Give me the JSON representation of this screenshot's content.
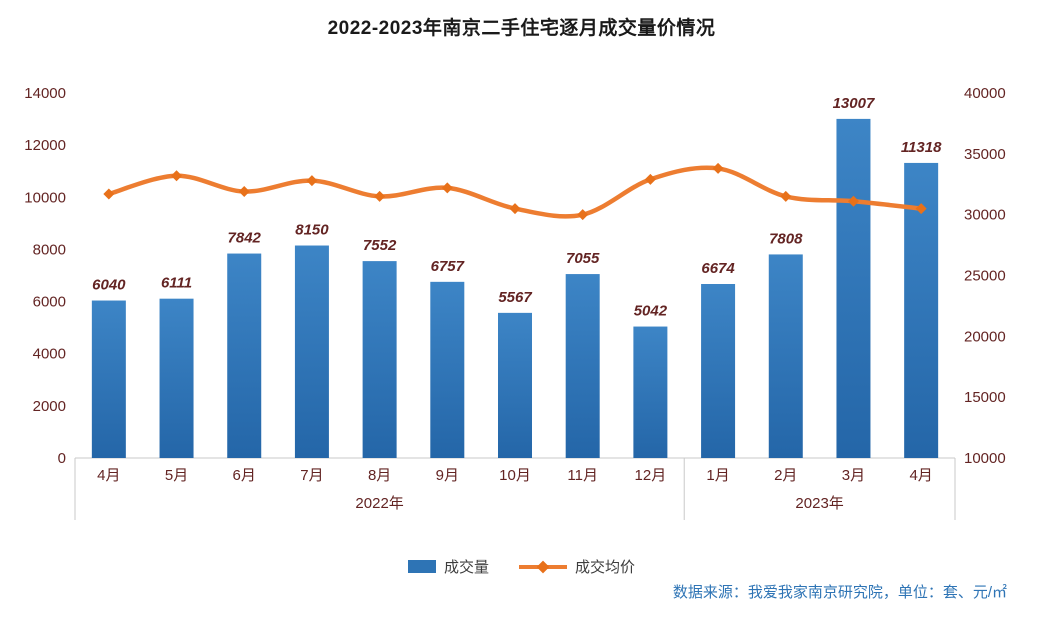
{
  "title": "2022-2023年南京二手住宅逐月成交量价情况",
  "footer": "数据来源：我爱我家南京研究院，单位：套、元/㎡",
  "legend": {
    "items": [
      {
        "label": "成交量",
        "marker": "bar-swatch-icon"
      },
      {
        "label": "成交均价",
        "marker": "line-swatch-icon"
      }
    ]
  },
  "colors": {
    "bar_top": "#3d85c6",
    "bar_bottom": "#2466a8",
    "bar": "#2E74B5",
    "line": "#ED7D31",
    "marker": "#E8711A",
    "axis_text": "#632423",
    "axis_line": "#c9c9c9",
    "footer_text": "#2E74B5",
    "title_text": "#1a1a1a"
  },
  "chart_data": {
    "type": "bar+line combo",
    "title": "2022-2023年南京二手住宅逐月成交量价情况",
    "categories": [
      "4月",
      "5月",
      "6月",
      "7月",
      "8月",
      "9月",
      "10月",
      "11月",
      "12月",
      "1月",
      "2月",
      "3月",
      "4月"
    ],
    "category_groups": [
      {
        "label": "2022年",
        "span": 9
      },
      {
        "label": "2023年",
        "span": 4
      }
    ],
    "series": [
      {
        "name": "成交量",
        "type": "bar",
        "axis": "left",
        "values": [
          6040,
          6111,
          7842,
          8150,
          7552,
          6757,
          5567,
          7055,
          5042,
          6674,
          7808,
          13007,
          11318
        ],
        "data_labels": true
      },
      {
        "name": "成交均价",
        "type": "line",
        "axis": "right",
        "values": [
          31700,
          33200,
          31900,
          32800,
          31500,
          32200,
          30500,
          30000,
          32900,
          33800,
          31500,
          31100,
          30500
        ],
        "data_labels": false,
        "note": "line values estimated from right axis position; no labels shown in chart"
      }
    ],
    "left_axis": {
      "min": 0,
      "max": 14000,
      "step": 2000,
      "ticks": [
        0,
        2000,
        4000,
        6000,
        8000,
        10000,
        12000,
        14000
      ]
    },
    "right_axis": {
      "min": 10000,
      "max": 40000,
      "step": 5000,
      "ticks": [
        10000,
        15000,
        20000,
        25000,
        30000,
        35000,
        40000
      ]
    },
    "grid": false,
    "legend_position": "bottom"
  }
}
